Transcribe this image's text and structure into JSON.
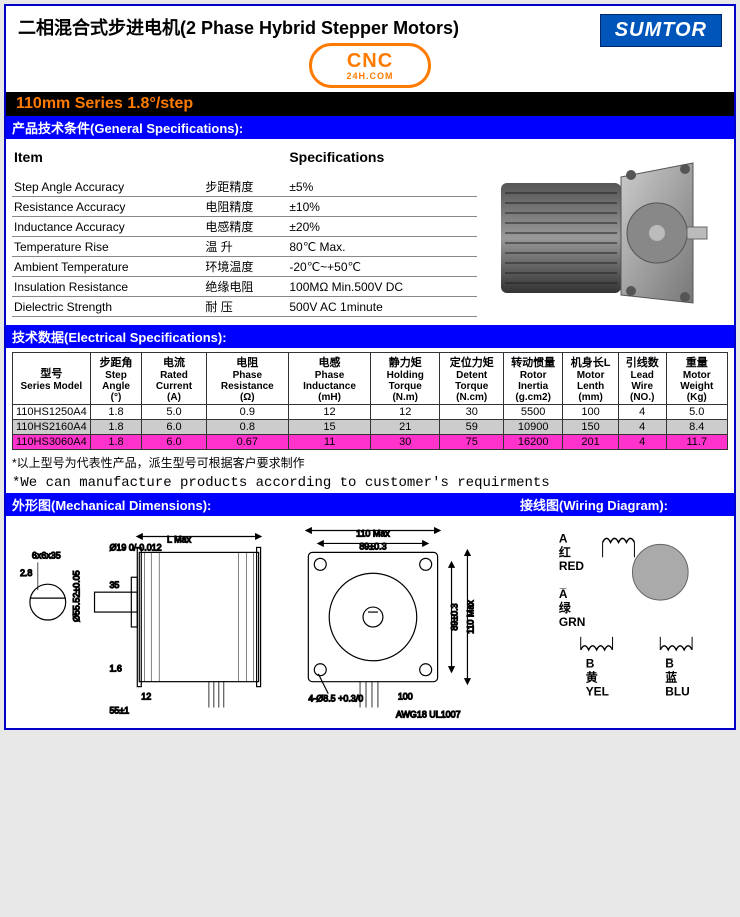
{
  "header": {
    "title_cn": "二相混合式步进电机",
    "title_en": "(2 Phase Hybrid Stepper Motors)",
    "brand": "SUMTOR",
    "logo_main": "CNC",
    "logo_sub": "24H.COM"
  },
  "series_bar": "110mm Series 1.8°/step",
  "sections": {
    "general": "产品技术条件(General Specifications):",
    "electrical": "技术数据(Electrical Specifications):",
    "mechanical": "外形图(Mechanical Dimensions):",
    "wiring": "接线图(Wiring Diagram):"
  },
  "gen_spec": {
    "col_item": "Item",
    "col_spec": "Specifications",
    "rows": [
      {
        "en": "Step Angle Accuracy",
        "cn": "步距精度",
        "val": "±5%"
      },
      {
        "en": "Resistance Accuracy",
        "cn": "电阻精度",
        "val": "±10%"
      },
      {
        "en": "Inductance Accuracy",
        "cn": "电感精度",
        "val": "±20%"
      },
      {
        "en": "Temperature Rise",
        "cn": "温   升",
        "val": "80℃ Max."
      },
      {
        "en": "Ambient Temperature",
        "cn": "环境温度",
        "val": "-20℃~+50℃"
      },
      {
        "en": "Insulation Resistance",
        "cn": "绝缘电阻",
        "val": "100MΩ  Min.500V DC"
      },
      {
        "en": "Dielectric Strength",
        "cn": "耐   压",
        "val": "500V AC 1minute"
      }
    ]
  },
  "elec_spec": {
    "headers": [
      {
        "cn": "型号",
        "en": "Series Model",
        "unit": ""
      },
      {
        "cn": "步距角",
        "en": "Step Angle",
        "unit": "(°)"
      },
      {
        "cn": "电流",
        "en": "Rated Current",
        "unit": "(A)"
      },
      {
        "cn": "电阻",
        "en": "Phase Resistance",
        "unit": "(Ω)"
      },
      {
        "cn": "电感",
        "en": "Phase Inductance",
        "unit": "(mH)"
      },
      {
        "cn": "静力矩",
        "en": "Holding Torque",
        "unit": "(N.m)"
      },
      {
        "cn": "定位力矩",
        "en": "Detent Torque",
        "unit": "(N.cm)"
      },
      {
        "cn": "转动惯量",
        "en": "Rotor Inertia",
        "unit": "(g.cm2)"
      },
      {
        "cn": "机身长L",
        "en": "Motor Lenth",
        "unit": "(mm)"
      },
      {
        "cn": "引线数",
        "en": "Lead Wire",
        "unit": "(NO.)"
      },
      {
        "cn": "重量",
        "en": "Motor Weight",
        "unit": "(Kg)"
      }
    ],
    "rows": [
      {
        "cls": "",
        "c": [
          "110HS1250A4",
          "1.8",
          "5.0",
          "0.9",
          "12",
          "12",
          "30",
          "5500",
          "100",
          "4",
          "5.0"
        ]
      },
      {
        "cls": "row-gray",
        "c": [
          "110HS2160A4",
          "1.8",
          "6.0",
          "0.8",
          "15",
          "21",
          "59",
          "10900",
          "150",
          "4",
          "8.4"
        ]
      },
      {
        "cls": "row-magenta",
        "c": [
          "110HS3060A4",
          "1.8",
          "6.0",
          "0.67",
          "11",
          "30",
          "75",
          "16200",
          "201",
          "4",
          "11.7"
        ]
      }
    ]
  },
  "notes": {
    "cn": "*以上型号为代表性产品，派生型号可根据客户要求制作",
    "en": "*We can manufacture products according to customer's requirments"
  },
  "mech": {
    "lmax": "L Max",
    "d110": "110 Max",
    "d89": "89±0.3",
    "d89v": "89±0.3",
    "d110v": "110 Max",
    "awg": "AWG18 UL1007",
    "hole": "4-Ø8.5 +0.3/0",
    "shaft_d": "Ø19 0/-0.012",
    "flat": "6x6x35",
    "t28": "2.8",
    "t35": "35",
    "spigot": "Ø55.52±0.05",
    "t16": "1.6",
    "t12": "12",
    "t55": "55±1",
    "t100": "100"
  },
  "wiring": {
    "a": {
      "sym": "A",
      "cn": "红",
      "en": "RED"
    },
    "abar": {
      "sym": "A̅",
      "cn": "绿",
      "en": "GRN"
    },
    "b": {
      "sym": "B",
      "cn": "黄",
      "en": "YEL"
    },
    "bbar": {
      "sym": "B̅",
      "cn": "蓝",
      "en": "BLU"
    }
  },
  "colors": {
    "border": "#0000cc",
    "blue_bar": "#0000ff",
    "brand_bg": "#0055bb",
    "orange": "#ff7b00",
    "magenta": "#ff33cc",
    "gray_row": "#cccccc"
  }
}
